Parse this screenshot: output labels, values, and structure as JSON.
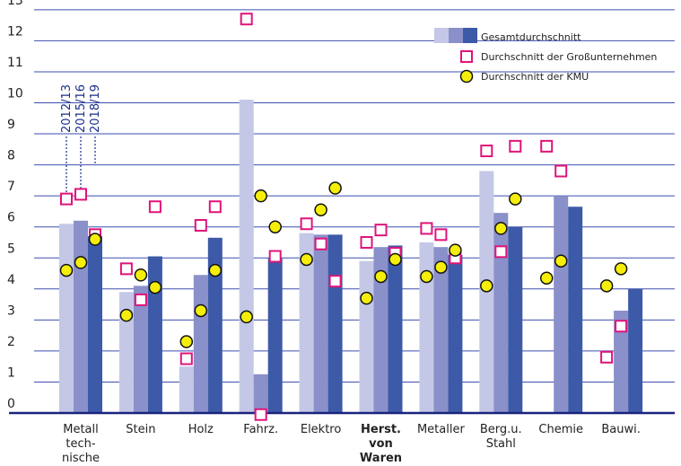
{
  "chart_data": {
    "type": "bar",
    "title": "",
    "xlabel": "",
    "ylabel": "",
    "ylim": [
      0,
      13
    ],
    "yticks": [
      0,
      1,
      2,
      3,
      4,
      5,
      6,
      7,
      8,
      9,
      10,
      11,
      12,
      13
    ],
    "grid": true,
    "legend_position": "top-right",
    "categories": [
      [
        "Metall",
        "tech-",
        "nische"
      ],
      [
        "Stein"
      ],
      [
        "Holz"
      ],
      [
        "Fahrz."
      ],
      [
        "Elektro"
      ],
      [
        "Herst.",
        "von",
        "Waren"
      ],
      [
        "Metaller"
      ],
      [
        "Berg.u.",
        "Stahl"
      ],
      [
        "Chemie"
      ],
      [
        "Bauwi."
      ]
    ],
    "bold_categories": [
      5
    ],
    "periods": [
      "2012/13",
      "2015/16",
      "2018/19"
    ],
    "period_colors": [
      "#c4c8e6",
      "#8a90c9",
      "#3d5aa8"
    ],
    "legend": {
      "bars": "Gesamtdurchschnitt",
      "large": "Durchschnitt der Großunternehmen",
      "kmu": "Durchschnitt der KMU"
    },
    "series": [
      {
        "name": "Gesamtdurchschnitt",
        "values_by_period": [
          [
            6.1,
            3.9,
            1.5,
            10.1,
            5.8,
            4.9,
            5.5,
            7.8,
            null,
            null
          ],
          [
            6.2,
            4.1,
            4.45,
            1.25,
            5.75,
            5.35,
            5.35,
            6.45,
            7.0,
            3.3
          ],
          [
            5.7,
            5.05,
            5.65,
            5.0,
            5.75,
            5.4,
            5.1,
            6.0,
            6.65,
            4.0
          ]
        ]
      },
      {
        "name": "Durchschnitt der Großunternehmen",
        "values_by_period": [
          [
            6.9,
            4.65,
            1.75,
            12.7,
            6.1,
            5.5,
            5.95,
            8.45,
            8.6,
            1.8
          ],
          [
            7.05,
            3.65,
            6.05,
            -0.05,
            5.45,
            5.9,
            5.75,
            5.2,
            7.8,
            2.8
          ],
          [
            5.75,
            6.65,
            6.65,
            5.05,
            4.25,
            5.15,
            5.0,
            8.6,
            null,
            null
          ]
        ]
      },
      {
        "name": "Durchschnitt der KMU",
        "values_by_period": [
          [
            4.6,
            3.15,
            2.3,
            3.1,
            4.95,
            3.7,
            4.4,
            4.1,
            4.35,
            4.1
          ],
          [
            4.85,
            4.45,
            3.3,
            7.0,
            6.55,
            4.4,
            4.7,
            5.95,
            4.9,
            4.65
          ],
          [
            5.6,
            4.05,
            4.6,
            6.0,
            7.25,
            4.95,
            5.25,
            6.9,
            null,
            null
          ]
        ]
      }
    ]
  }
}
